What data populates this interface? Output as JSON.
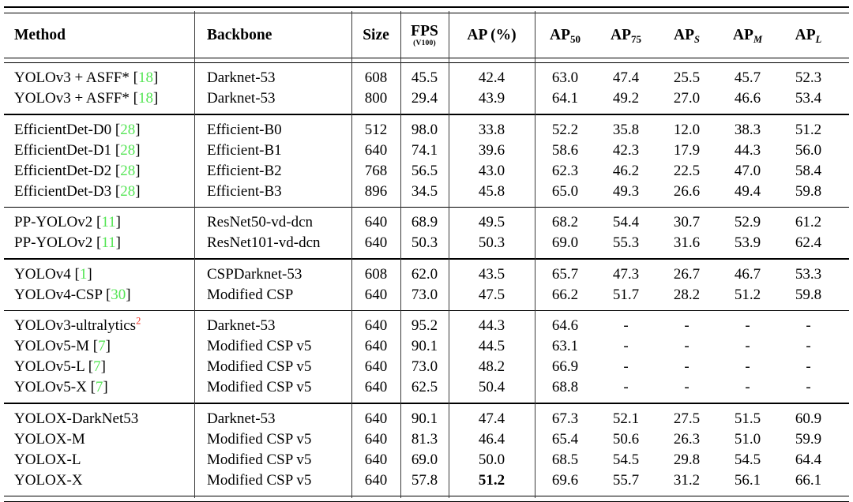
{
  "page": {
    "background": "#ffffff"
  },
  "table": {
    "colors": {
      "citation": "#55e555",
      "footnote": "#ee2c1c",
      "text": "#000000",
      "rule": "#000000"
    },
    "header": {
      "method": "Method",
      "backbone": "Backbone",
      "size": "Size",
      "fps": "FPS",
      "fps_sub": "(V100)",
      "ap": "AP (%)",
      "ap_cols": [
        {
          "base": "AP",
          "sub": "50",
          "italic": false
        },
        {
          "base": "AP",
          "sub": "75",
          "italic": false
        },
        {
          "base": "AP",
          "sub": "S",
          "italic": true
        },
        {
          "base": "AP",
          "sub": "M",
          "italic": true
        },
        {
          "base": "AP",
          "sub": "L",
          "italic": true
        }
      ]
    },
    "groups": [
      {
        "rows": [
          {
            "method": "YOLOv3 + ASFF*",
            "cite": "18",
            "backbone": "Darknet-53",
            "size": "608",
            "fps": "45.5",
            "ap": "42.4",
            "ap50": "63.0",
            "ap75": "47.4",
            "aps": "25.5",
            "apm": "45.7",
            "apl": "52.3"
          },
          {
            "method": "YOLOv3 + ASFF*",
            "cite": "18",
            "backbone": "Darknet-53",
            "size": "800",
            "fps": "29.4",
            "ap": "43.9",
            "ap50": "64.1",
            "ap75": "49.2",
            "aps": "27.0",
            "apm": "46.6",
            "apl": "53.4"
          }
        ]
      },
      {
        "rows": [
          {
            "method": "EfficientDet-D0",
            "cite": "28",
            "backbone": "Efficient-B0",
            "size": "512",
            "fps": "98.0",
            "ap": "33.8",
            "ap50": "52.2",
            "ap75": "35.8",
            "aps": "12.0",
            "apm": "38.3",
            "apl": "51.2"
          },
          {
            "method": "EfficientDet-D1",
            "cite": "28",
            "backbone": "Efficient-B1",
            "size": "640",
            "fps": "74.1",
            "ap": "39.6",
            "ap50": "58.6",
            "ap75": "42.3",
            "aps": "17.9",
            "apm": "44.3",
            "apl": "56.0"
          },
          {
            "method": "EfficientDet-D2",
            "cite": "28",
            "backbone": "Efficient-B2",
            "size": "768",
            "fps": "56.5",
            "ap": "43.0",
            "ap50": "62.3",
            "ap75": "46.2",
            "aps": "22.5",
            "apm": "47.0",
            "apl": "58.4"
          },
          {
            "method": "EfficientDet-D3",
            "cite": "28",
            "backbone": "Efficient-B3",
            "size": "896",
            "fps": "34.5",
            "ap": "45.8",
            "ap50": "65.0",
            "ap75": "49.3",
            "aps": "26.6",
            "apm": "49.4",
            "apl": "59.8"
          }
        ]
      },
      {
        "rows": [
          {
            "method": "PP-YOLOv2",
            "cite": "11",
            "backbone": "ResNet50-vd-dcn",
            "size": "640",
            "fps": "68.9",
            "ap": "49.5",
            "ap50": "68.2",
            "ap75": "54.4",
            "aps": "30.7",
            "apm": "52.9",
            "apl": "61.2"
          },
          {
            "method": "PP-YOLOv2",
            "cite": "11",
            "backbone": "ResNet101-vd-dcn",
            "size": "640",
            "fps": "50.3",
            "ap": "50.3",
            "ap50": "69.0",
            "ap75": "55.3",
            "aps": "31.6",
            "apm": "53.9",
            "apl": "62.4"
          }
        ]
      },
      {
        "rows": [
          {
            "method": "YOLOv4",
            "cite": "1",
            "backbone": "CSPDarknet-53",
            "size": "608",
            "fps": "62.0",
            "ap": "43.5",
            "ap50": "65.7",
            "ap75": "47.3",
            "aps": "26.7",
            "apm": "46.7",
            "apl": "53.3"
          },
          {
            "method": "YOLOv4-CSP",
            "cite": "30",
            "backbone": "Modified CSP",
            "size": "640",
            "fps": "73.0",
            "ap": "47.5",
            "ap50": "66.2",
            "ap75": "51.7",
            "aps": "28.2",
            "apm": "51.2",
            "apl": "59.8"
          }
        ]
      },
      {
        "rows": [
          {
            "method": "YOLOv3-ultralytics",
            "sup": "2",
            "backbone": "Darknet-53",
            "size": "640",
            "fps": "95.2",
            "ap": "44.3",
            "ap50": "64.6",
            "ap75": "-",
            "aps": "-",
            "apm": "-",
            "apl": "-"
          },
          {
            "method": "YOLOv5-M",
            "cite": "7",
            "backbone": "Modified CSP v5",
            "size": "640",
            "fps": "90.1",
            "ap": "44.5",
            "ap50": "63.1",
            "ap75": "-",
            "aps": "-",
            "apm": "-",
            "apl": "-"
          },
          {
            "method": "YOLOv5-L",
            "cite": "7",
            "backbone": "Modified CSP v5",
            "size": "640",
            "fps": "73.0",
            "ap": "48.2",
            "ap50": "66.9",
            "ap75": "-",
            "aps": "-",
            "apm": "-",
            "apl": "-"
          },
          {
            "method": "YOLOv5-X",
            "cite": "7",
            "backbone": "Modified CSP v5",
            "size": "640",
            "fps": "62.5",
            "ap": "50.4",
            "ap50": "68.8",
            "ap75": "-",
            "aps": "-",
            "apm": "-",
            "apl": "-"
          }
        ]
      },
      {
        "rows": [
          {
            "method": "YOLOX-DarkNet53",
            "backbone": "Darknet-53",
            "size": "640",
            "fps": "90.1",
            "ap": "47.4",
            "ap50": "67.3",
            "ap75": "52.1",
            "aps": "27.5",
            "apm": "51.5",
            "apl": "60.9"
          },
          {
            "method": "YOLOX-M",
            "backbone": "Modified CSP v5",
            "size": "640",
            "fps": "81.3",
            "ap": "46.4",
            "ap50": "65.4",
            "ap75": "50.6",
            "aps": "26.3",
            "apm": "51.0",
            "apl": "59.9"
          },
          {
            "method": "YOLOX-L",
            "backbone": "Modified CSP v5",
            "size": "640",
            "fps": "69.0",
            "ap": "50.0",
            "ap50": "68.5",
            "ap75": "54.5",
            "aps": "29.8",
            "apm": "54.5",
            "apl": "64.4"
          },
          {
            "method": "YOLOX-X",
            "backbone": "Modified CSP v5",
            "size": "640",
            "fps": "57.8",
            "ap": "51.2",
            "bold_ap": true,
            "ap50": "69.6",
            "ap75": "55.7",
            "aps": "31.2",
            "apm": "56.1",
            "apl": "66.1"
          }
        ]
      }
    ]
  }
}
